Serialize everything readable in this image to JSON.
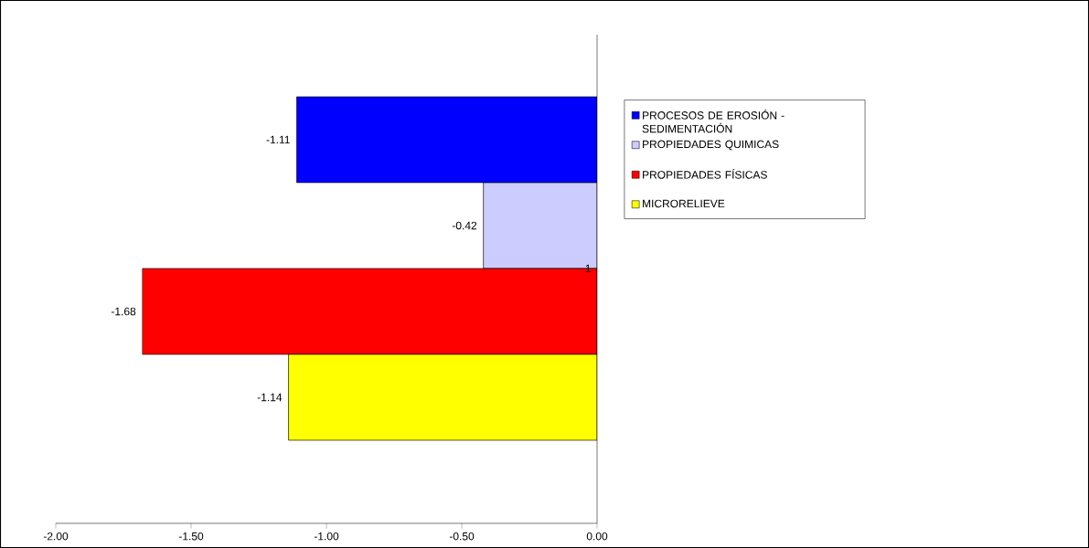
{
  "chart_data": {
    "type": "bar",
    "orientation": "horizontal",
    "categories": [
      "1"
    ],
    "series": [
      {
        "name": "PROCESOS DE EROSIÓN - SEDIMENTACIÓN",
        "color": "#0000ff",
        "values": [
          -1.11
        ]
      },
      {
        "name": "PROPIEDADES QUIMICAS",
        "color": "#ccccff",
        "values": [
          -0.42
        ]
      },
      {
        "name": "PROPIEDADES FÍSICAS",
        "color": "#ff0000",
        "values": [
          -1.68
        ]
      },
      {
        "name": "MICRORELIEVE",
        "color": "#ffff00",
        "values": [
          -1.14
        ]
      }
    ],
    "xlim": [
      -2,
      0
    ],
    "xticks": [
      {
        "value": -2,
        "label": "-2.00"
      },
      {
        "value": -1.5,
        "label": "-1.50"
      },
      {
        "value": -1,
        "label": "-1.00"
      },
      {
        "value": -0.5,
        "label": "-0.50"
      },
      {
        "value": 0,
        "label": "0.00"
      }
    ],
    "data_labels": true,
    "legend": "right"
  }
}
